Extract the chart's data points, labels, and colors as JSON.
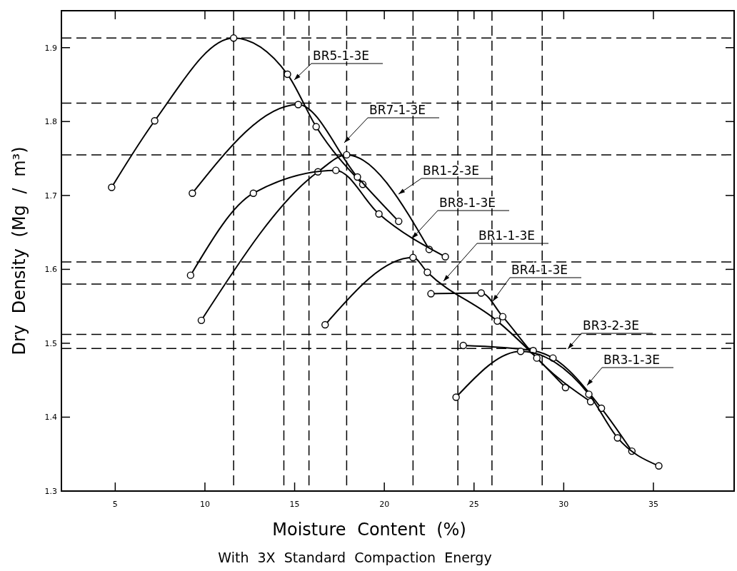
{
  "chart_data": {
    "type": "line",
    "xlabel": "Moisture Content (%)",
    "ylabel": "Dry Density (Mg / m³)",
    "annotations": [
      "With 3X Standard Compaction Energy"
    ],
    "xlim": [
      2,
      39.5
    ],
    "ylim": [
      1.3,
      1.95
    ],
    "xticks": [
      5,
      10,
      15,
      20,
      25,
      30,
      35
    ],
    "yticks": [
      1.3,
      1.4,
      1.5,
      1.6,
      1.7,
      1.8,
      1.9
    ],
    "grid": false,
    "marker": "circle",
    "line_style": "solid",
    "series": [
      {
        "name": "BR5-1-3E",
        "color": "#000000",
        "x": [
          4.8,
          7.2,
          11.6,
          14.6,
          16.2,
          18.8
        ],
        "values": [
          1.711,
          1.801,
          1.913,
          1.864,
          1.793,
          1.715
        ]
      },
      {
        "name": "BR7-1-3E",
        "color": "#000000",
        "x": [
          9.3,
          15.2,
          18.5,
          20.8
        ],
        "values": [
          1.703,
          1.823,
          1.725,
          1.665
        ]
      },
      {
        "name": "BR1-2-3E",
        "color": "#000000",
        "x": [
          9.8,
          16.3,
          17.9,
          22.5
        ],
        "values": [
          1.531,
          1.732,
          1.755,
          1.627
        ]
      },
      {
        "name": "BR8-1-3E",
        "color": "#000000",
        "x": [
          9.2,
          12.7,
          17.3,
          19.7,
          23.4
        ],
        "values": [
          1.592,
          1.703,
          1.734,
          1.675,
          1.617
        ]
      },
      {
        "name": "BR1-1-3E",
        "color": "#000000",
        "x": [
          16.7,
          21.6,
          22.4,
          26.3,
          30.1
        ],
        "values": [
          1.525,
          1.616,
          1.596,
          1.53,
          1.44
        ]
      },
      {
        "name": "BR4-1-3E",
        "color": "#000000",
        "x": [
          22.6,
          25.4,
          26.6,
          28.5,
          31.5
        ],
        "values": [
          1.567,
          1.568,
          1.536,
          1.48,
          1.421
        ]
      },
      {
        "name": "BR3-2-3E",
        "color": "#000000",
        "x": [
          24.4,
          28.3,
          29.4,
          32.1,
          33.8
        ],
        "values": [
          1.497,
          1.49,
          1.48,
          1.412,
          1.354
        ]
      },
      {
        "name": "BR3-1-3E",
        "color": "#000000",
        "x": [
          24.0,
          27.6,
          31.4,
          33.0,
          35.3
        ],
        "values": [
          1.427,
          1.489,
          1.431,
          1.372,
          1.334
        ]
      }
    ],
    "ref_lines": [
      {
        "axis": "y",
        "value": 1.913,
        "color": "#000000",
        "line_style": "dashed"
      },
      {
        "axis": "y",
        "value": 1.825,
        "color": "#000000",
        "line_style": "dashed"
      },
      {
        "axis": "y",
        "value": 1.755,
        "color": "#000000",
        "line_style": "dashed"
      },
      {
        "axis": "y",
        "value": 1.61,
        "color": "#000000",
        "line_style": "dashed"
      },
      {
        "axis": "y",
        "value": 1.58,
        "color": "#000000",
        "line_style": "dashed"
      },
      {
        "axis": "y",
        "value": 1.512,
        "color": "#000000",
        "line_style": "dashed"
      },
      {
        "axis": "y",
        "value": 1.493,
        "color": "#000000",
        "line_style": "dashed"
      },
      {
        "axis": "x",
        "value": 11.6,
        "color": "#000000",
        "line_style": "dashed"
      },
      {
        "axis": "x",
        "value": 14.4,
        "color": "#000000",
        "line_style": "dashed"
      },
      {
        "axis": "x",
        "value": 15.8,
        "color": "#000000",
        "line_style": "dashed"
      },
      {
        "axis": "x",
        "value": 17.9,
        "color": "#000000",
        "line_style": "dashed"
      },
      {
        "axis": "x",
        "value": 21.6,
        "color": "#000000",
        "line_style": "dashed"
      },
      {
        "axis": "x",
        "value": 24.1,
        "color": "#000000",
        "line_style": "dashed"
      },
      {
        "axis": "x",
        "value": 26.0,
        "color": "#000000",
        "line_style": "dashed"
      },
      {
        "axis": "x",
        "value": 28.8,
        "color": "#000000",
        "line_style": "dashed"
      }
    ]
  }
}
